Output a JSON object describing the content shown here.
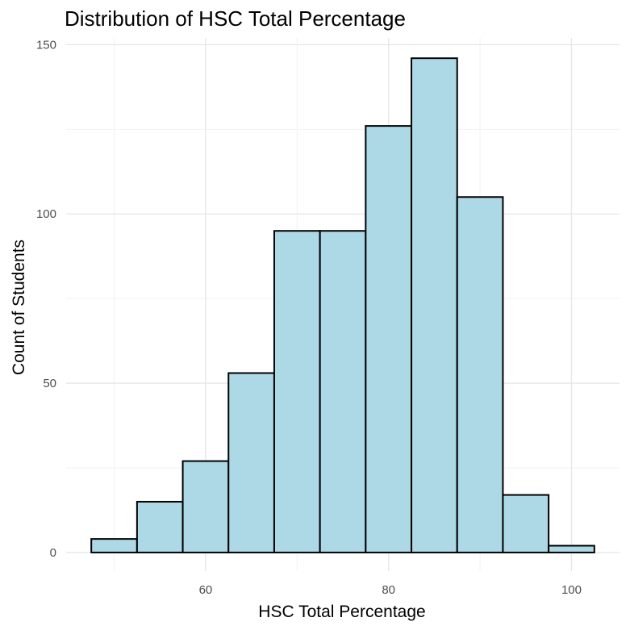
{
  "chart_data": {
    "type": "bar",
    "title": "Distribution of HSC Total Percentage",
    "xlabel": "HSC Total Percentage",
    "ylabel": "Count of Students",
    "bin_width": 5,
    "bins": [
      {
        "x_start": 47.5,
        "x_end": 52.5,
        "count": 4
      },
      {
        "x_start": 52.5,
        "x_end": 57.5,
        "count": 15
      },
      {
        "x_start": 57.5,
        "x_end": 62.5,
        "count": 27
      },
      {
        "x_start": 62.5,
        "x_end": 67.5,
        "count": 53
      },
      {
        "x_start": 67.5,
        "x_end": 72.5,
        "count": 95
      },
      {
        "x_start": 72.5,
        "x_end": 77.5,
        "count": 95
      },
      {
        "x_start": 77.5,
        "x_end": 82.5,
        "count": 126
      },
      {
        "x_start": 82.5,
        "x_end": 87.5,
        "count": 146
      },
      {
        "x_start": 87.5,
        "x_end": 92.5,
        "count": 105
      },
      {
        "x_start": 92.5,
        "x_end": 97.5,
        "count": 17
      },
      {
        "x_start": 97.5,
        "x_end": 102.5,
        "count": 2
      }
    ],
    "xlim": [
      44.75,
      105.25
    ],
    "ylim": [
      -5.5,
      152
    ],
    "x_ticks": [
      60,
      80,
      100
    ],
    "x_tick_labels": [
      "60",
      "80",
      "100"
    ],
    "y_ticks": [
      0,
      50,
      100,
      150
    ],
    "y_tick_labels": [
      "0",
      "50",
      "100",
      "150"
    ],
    "x_minor_ticks": [
      50,
      70,
      90
    ],
    "y_minor_ticks": [
      25,
      75,
      125
    ],
    "grid": true,
    "fill_color": "#add8e6",
    "edge_color": "#000000"
  }
}
